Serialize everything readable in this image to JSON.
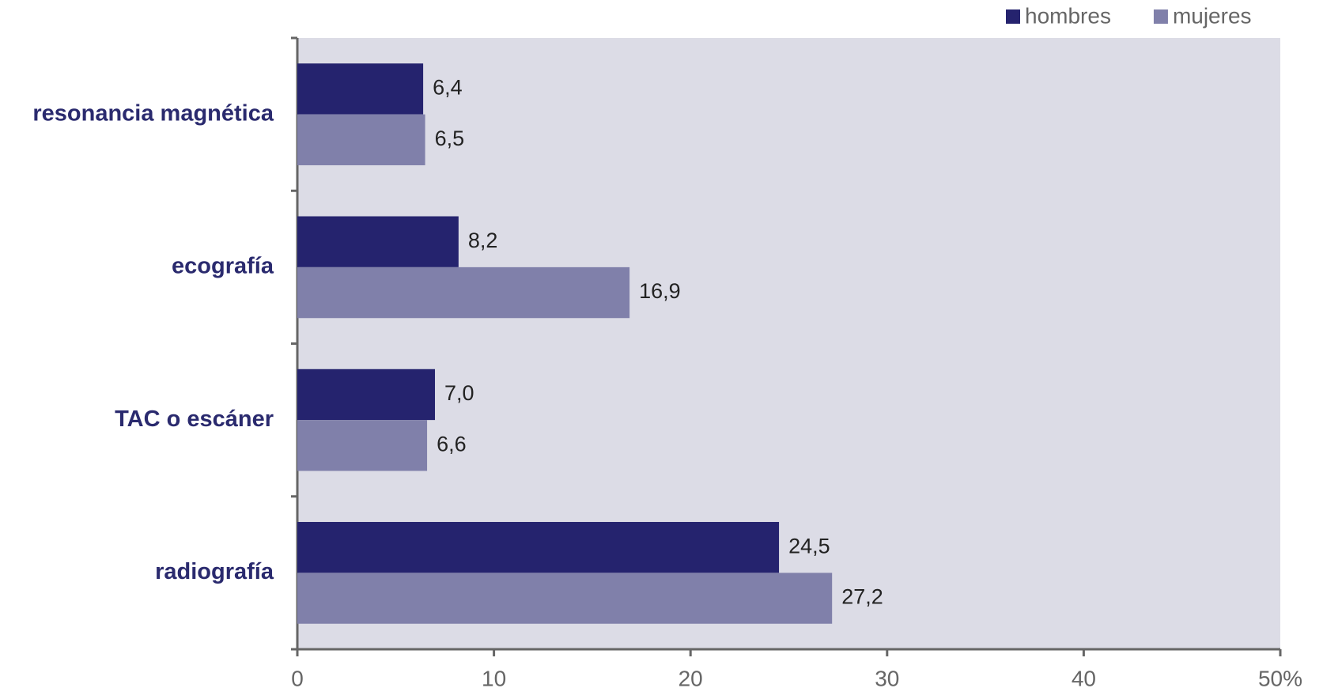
{
  "chart_data": {
    "type": "hbar",
    "categories": [
      "resonancia magnética",
      "ecografía",
      "TAC  o escáner",
      "radiografía"
    ],
    "series": [
      {
        "name": "hombres",
        "color": "#25236e",
        "values": [
          6.4,
          8.2,
          7.0,
          24.5
        ],
        "value_labels": [
          "6,4",
          "8,2",
          "7,0",
          "24,5"
        ]
      },
      {
        "name": "mujeres",
        "color": "#8080aa",
        "values": [
          6.5,
          16.9,
          6.6,
          27.2
        ],
        "value_labels": [
          "6,5",
          "16,9",
          "6,6",
          "27,2"
        ]
      }
    ],
    "xlim": [
      0,
      50
    ],
    "xticks": [
      0,
      10,
      20,
      30,
      40,
      {
        "value": 50,
        "label": "50%"
      }
    ],
    "legend": "top-right"
  }
}
